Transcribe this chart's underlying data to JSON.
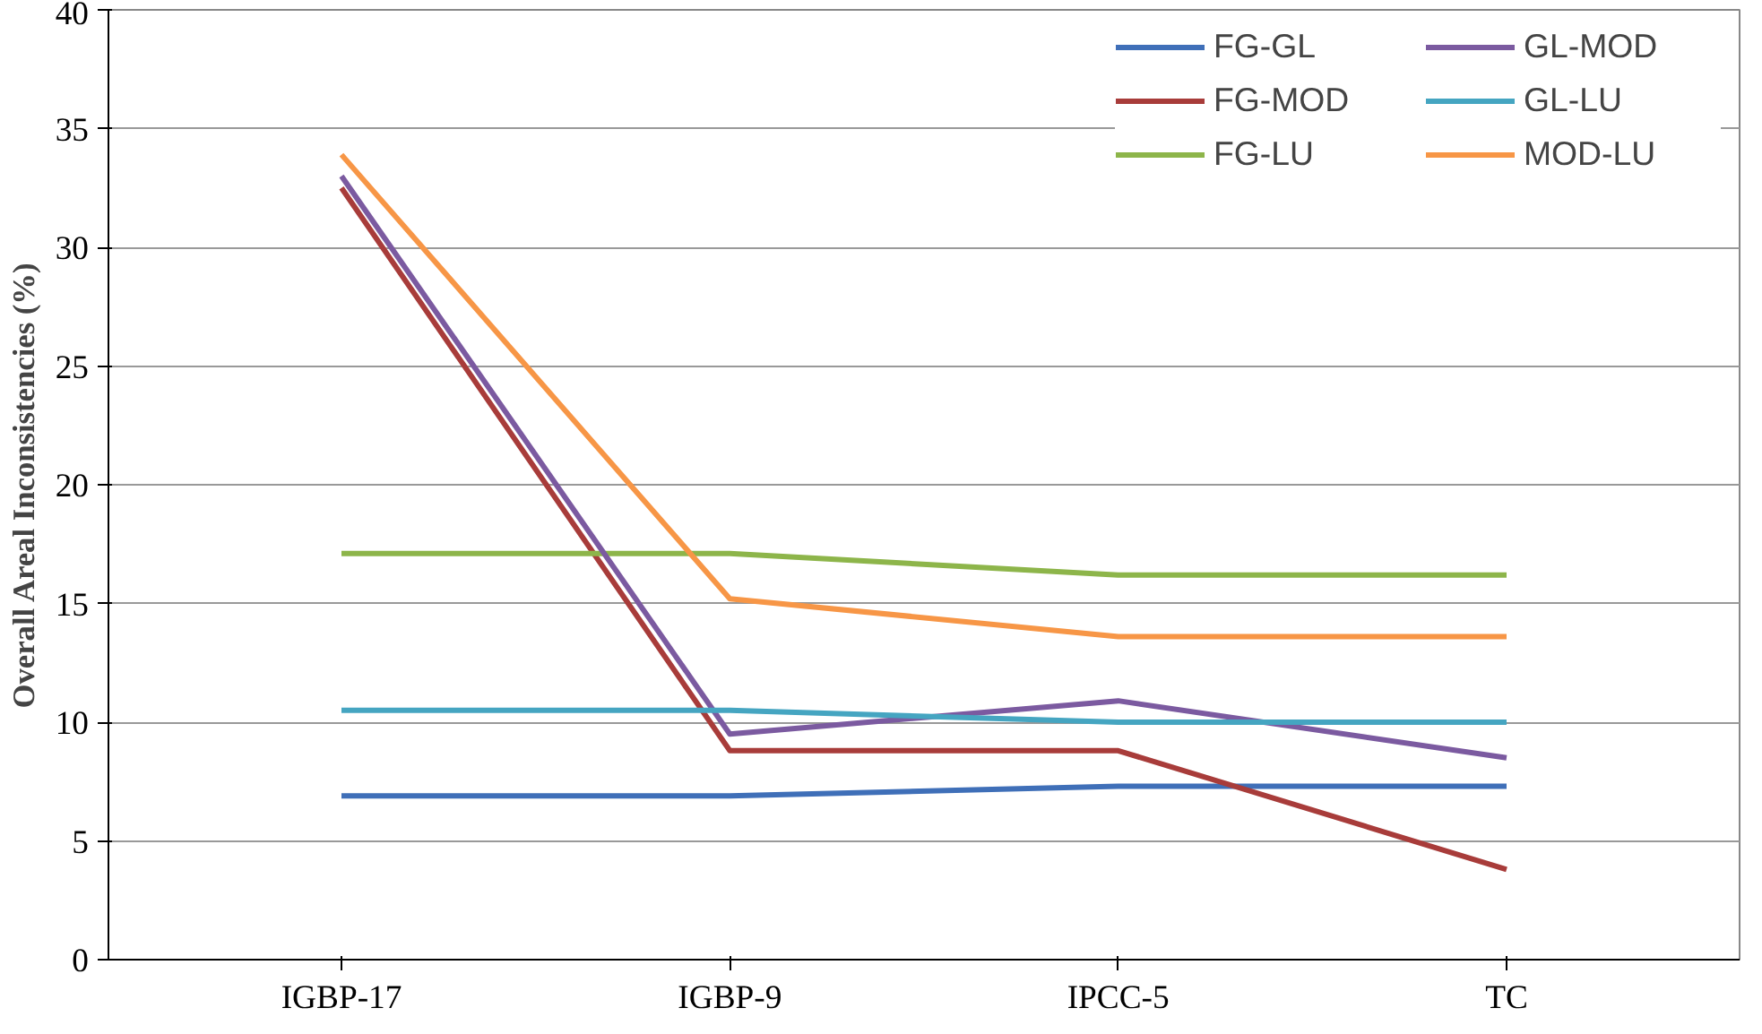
{
  "chart_data": {
    "type": "line",
    "ylabel": "Overall Areal Inconsistencies (%)",
    "categories": [
      "IGBP-17",
      "IGBP-9",
      "IPCC-5",
      "TC"
    ],
    "series": [
      {
        "name": "FG-GL",
        "color": "#3f6fb8",
        "values": [
          6.9,
          6.9,
          7.3,
          7.3
        ]
      },
      {
        "name": "FG-MOD",
        "color": "#a83c3a",
        "values": [
          32.5,
          8.8,
          8.8,
          3.8
        ]
      },
      {
        "name": "FG-LU",
        "color": "#8db54a",
        "values": [
          17.1,
          17.1,
          16.2,
          16.2
        ]
      },
      {
        "name": "GL-MOD",
        "color": "#7b5aa0",
        "values": [
          33.0,
          9.5,
          10.9,
          8.5
        ]
      },
      {
        "name": "GL-LU",
        "color": "#45a5c1",
        "values": [
          10.5,
          10.5,
          10.0,
          10.0
        ]
      },
      {
        "name": "MOD-LU",
        "color": "#f79646",
        "values": [
          33.9,
          15.2,
          13.6,
          13.6
        ]
      }
    ],
    "ylim": [
      0,
      40
    ],
    "yticks": [
      0,
      5,
      10,
      15,
      20,
      25,
      30,
      35,
      40
    ],
    "grid": "y",
    "legend": "top right",
    "marker": "none",
    "line_style": "solid"
  }
}
